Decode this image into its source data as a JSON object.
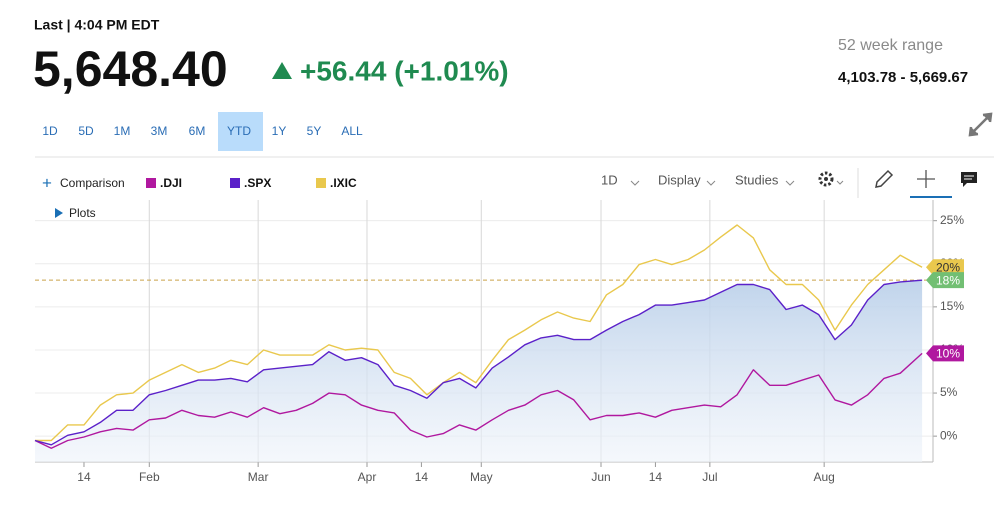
{
  "quote": {
    "status": "Last | 4:04 PM EDT",
    "price": "5,648.40",
    "change": "+56.44 (+1.01%)",
    "range_label": "52 week range",
    "range": "4,103.78 - 5,669.67"
  },
  "ranges": [
    "1D",
    "5D",
    "1M",
    "3M",
    "6M",
    "YTD",
    "1Y",
    "5Y",
    "ALL"
  ],
  "selected_range": "YTD",
  "toolbar": {
    "comparison": "Comparison",
    "interval": "1D",
    "display": "Display",
    "studies": "Studies",
    "plots": "Plots"
  },
  "chart_data": {
    "type": "line",
    "x": [
      0,
      3,
      6,
      9,
      12,
      15,
      18,
      21,
      24,
      27,
      30,
      33,
      36,
      39,
      42,
      45,
      48,
      51,
      54,
      57,
      60,
      63,
      66,
      69,
      72,
      75,
      78,
      81,
      84,
      87,
      90,
      93,
      96,
      99,
      102,
      105,
      108,
      111,
      114,
      117,
      120,
      123,
      126,
      129,
      132,
      135,
      138,
      141,
      144,
      147,
      150,
      153,
      156,
      159,
      163
    ],
    "xlim": [
      0,
      165
    ],
    "xticks": [
      {
        "value": 9,
        "label": "14",
        "major": false
      },
      {
        "value": 21,
        "label": "Feb",
        "major": true
      },
      {
        "value": 41,
        "label": "Mar",
        "major": true
      },
      {
        "value": 61,
        "label": "Apr",
        "major": true
      },
      {
        "value": 71,
        "label": "14",
        "major": false
      },
      {
        "value": 82,
        "label": "May",
        "major": true
      },
      {
        "value": 104,
        "label": "Jun",
        "major": true
      },
      {
        "value": 114,
        "label": "14",
        "major": false
      },
      {
        "value": 124,
        "label": "Jul",
        "major": true
      },
      {
        "value": 145,
        "label": "Aug",
        "major": true
      }
    ],
    "ylim": [
      -3,
      27.4
    ],
    "yticks": [
      {
        "value": 0,
        "label": "0%"
      },
      {
        "value": 5,
        "label": "5%"
      },
      {
        "value": 10,
        "label": "10%"
      },
      {
        "value": 15,
        "label": "15%"
      },
      {
        "value": 20,
        "label": "20%"
      },
      {
        "value": 25,
        "label": "25%"
      }
    ],
    "grid": true,
    "area_series": 1,
    "reference_line_series": 1,
    "series": [
      {
        "name": ".DJI",
        "color": "#b0189f",
        "badge_color": "#b0189f",
        "last_label": "10%",
        "values": [
          -0.5,
          -1.4,
          -0.5,
          -0.1,
          0.5,
          0.9,
          0.7,
          1.9,
          2.1,
          3,
          2.4,
          2.2,
          2.8,
          2.2,
          3.3,
          2.6,
          3,
          3.8,
          5,
          4.8,
          3.6,
          3,
          2.7,
          0.7,
          -0.1,
          0.3,
          1.3,
          0.7,
          1.9,
          3,
          3.6,
          4.8,
          5.3,
          4.2,
          1.9,
          2.4,
          2.4,
          2.7,
          2.2,
          3,
          3.3,
          3.6,
          3.4,
          4.8,
          7.7,
          5.9,
          5.9,
          6.5,
          7.1,
          4.2,
          3.6,
          4.8,
          6.7,
          7.3,
          9.6
        ]
      },
      {
        "name": ".SPX",
        "color": "#5b21c9",
        "badge_color": "#72bf73",
        "last_label": "18%",
        "values": [
          -0.5,
          -1,
          0.1,
          0.5,
          1.6,
          3,
          3,
          4.8,
          5.3,
          5.9,
          6.5,
          6.5,
          6.7,
          6.3,
          7.7,
          7.9,
          8.1,
          8.3,
          9.8,
          8.8,
          9.1,
          8.3,
          5.9,
          5.3,
          4.4,
          6.2,
          6.7,
          5.6,
          7.9,
          9.2,
          10.6,
          11.4,
          11.7,
          11.2,
          11.2,
          12.3,
          13.3,
          14.1,
          15.2,
          15.2,
          15.5,
          15.8,
          16.7,
          17.6,
          17.6,
          17,
          14.7,
          15.2,
          14.1,
          11.2,
          12.9,
          15.8,
          17.6,
          17.9,
          18.1
        ]
      },
      {
        "name": ".IXIC",
        "color": "#e9c84d",
        "badge_color": "#e9c84d",
        "last_label": "20%",
        "values": [
          -0.5,
          -0.5,
          1.3,
          1.3,
          3.6,
          4.8,
          5,
          6.5,
          7.4,
          8.3,
          7.4,
          7.9,
          8.8,
          8.3,
          10,
          9.4,
          9.4,
          9.4,
          10.6,
          10,
          10.2,
          10,
          7.4,
          6.7,
          4.8,
          6.2,
          7.4,
          6.2,
          8.8,
          11.2,
          12.3,
          13.5,
          14.4,
          13.7,
          13.3,
          16.4,
          17.6,
          19.9,
          20.5,
          19.9,
          20.5,
          21.6,
          23.1,
          24.5,
          23,
          19.3,
          17.6,
          17.6,
          15.8,
          12.3,
          15.2,
          17.6,
          19.3,
          21,
          19.6
        ]
      }
    ]
  }
}
